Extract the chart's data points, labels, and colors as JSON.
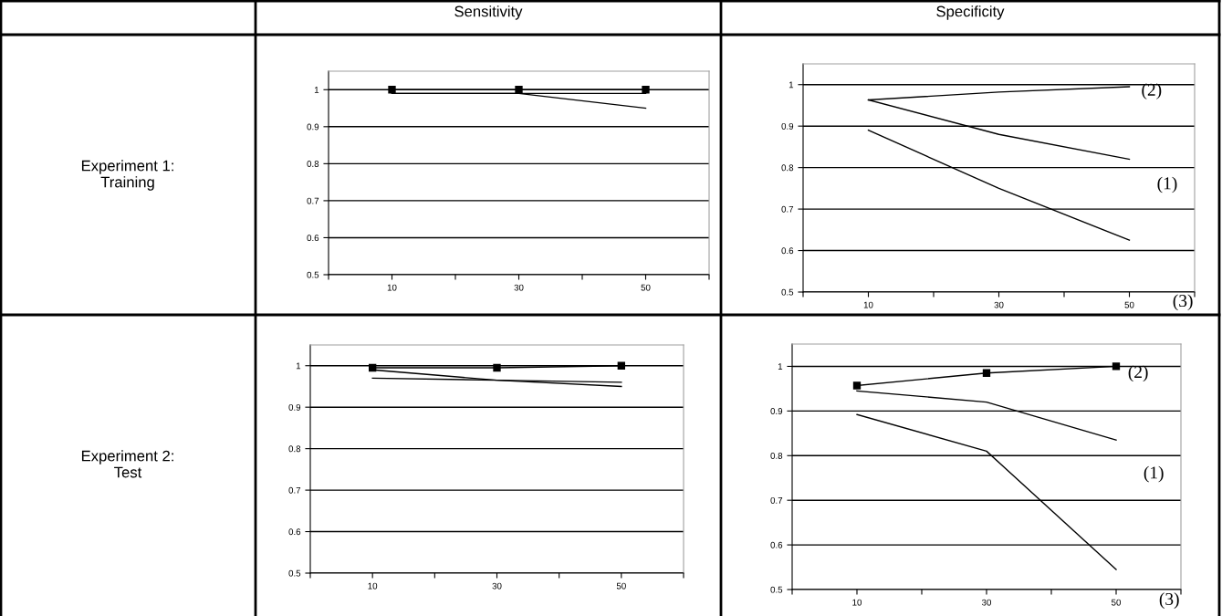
{
  "chart_data": [
    {
      "type": "line",
      "title": "Sensitivity",
      "ylabel": "Experiment 1:\nTraining",
      "x": [
        10,
        30,
        50
      ],
      "xlim": [
        0,
        60
      ],
      "xticks": [
        {
          "value": 0,
          "label": null
        },
        10,
        {
          "value": 20,
          "label": null
        },
        30,
        {
          "value": 40,
          "label": null
        },
        50,
        {
          "value": 60,
          "label": null
        }
      ],
      "ylim": [
        0.5,
        1.05
      ],
      "yticks": [
        0.5,
        0.6,
        0.7,
        0.8,
        0.9,
        1
      ],
      "grid": "y",
      "series": [
        {
          "color": "#000000",
          "marker": "square",
          "values": [
            1.0,
            1.0,
            1.0
          ]
        },
        {
          "color": "#000000",
          "values": [
            0.99,
            0.99,
            0.99
          ]
        },
        {
          "color": "#000000",
          "values": [
            0.99,
            0.99,
            0.95
          ]
        }
      ]
    },
    {
      "type": "line",
      "title": "Specificity",
      "x": [
        10,
        30,
        50
      ],
      "xlim": [
        0,
        60
      ],
      "xticks": [
        {
          "value": 0,
          "label": null
        },
        10,
        {
          "value": 20,
          "label": null
        },
        30,
        {
          "value": 40,
          "label": null
        },
        50,
        {
          "value": 60,
          "label": null
        }
      ],
      "ylim": [
        0.5,
        1.05
      ],
      "yticks": [
        0.5,
        0.6,
        0.7,
        0.8,
        0.9,
        1
      ],
      "grid": "y",
      "series": [
        {
          "color": "#000000",
          "values": [
            0.963,
            0.982,
            0.995
          ]
        },
        {
          "color": "#000000",
          "values": [
            0.963,
            0.88,
            0.82
          ]
        },
        {
          "color": "#000000",
          "values": [
            0.89,
            0.75,
            0.625
          ]
        }
      ],
      "annotations": [
        "(2)",
        "(1)",
        "(3)"
      ]
    },
    {
      "type": "line",
      "ylabel": "Experiment 2:\nTest",
      "x": [
        10,
        30,
        50
      ],
      "xlim": [
        0,
        60
      ],
      "xticks": [
        {
          "value": 0,
          "label": null
        },
        10,
        {
          "value": 20,
          "label": null
        },
        30,
        {
          "value": 40,
          "label": null
        },
        50,
        {
          "value": 60,
          "label": null
        }
      ],
      "ylim": [
        0.5,
        1.05
      ],
      "yticks": [
        0.5,
        0.6,
        0.7,
        0.8,
        0.9,
        1
      ],
      "grid": "y",
      "series": [
        {
          "color": "#000000",
          "marker": "square",
          "values": [
            0.995,
            0.995,
            1.0
          ]
        },
        {
          "color": "#000000",
          "values": [
            0.99,
            0.965,
            0.95
          ]
        },
        {
          "color": "#000000",
          "values": [
            0.97,
            0.965,
            0.96
          ]
        }
      ]
    },
    {
      "type": "line",
      "x": [
        10,
        30,
        50
      ],
      "xlim": [
        0,
        60
      ],
      "xticks": [
        {
          "value": 0,
          "label": null
        },
        10,
        {
          "value": 20,
          "label": null
        },
        30,
        {
          "value": 40,
          "label": null
        },
        50,
        {
          "value": 60,
          "label": null
        }
      ],
      "ylim": [
        0.5,
        1.05
      ],
      "yticks": [
        0.5,
        0.6,
        0.7,
        0.8,
        0.9,
        1
      ],
      "grid": "y",
      "series": [
        {
          "color": "#000000",
          "marker": "square",
          "values": [
            0.957,
            0.985,
            1.0
          ]
        },
        {
          "color": "#000000",
          "values": [
            0.945,
            0.92,
            0.835
          ]
        },
        {
          "color": "#000000",
          "values": [
            0.892,
            0.81,
            0.545
          ]
        }
      ],
      "annotations": [
        "(2)",
        "(1)",
        "(3)"
      ]
    }
  ]
}
